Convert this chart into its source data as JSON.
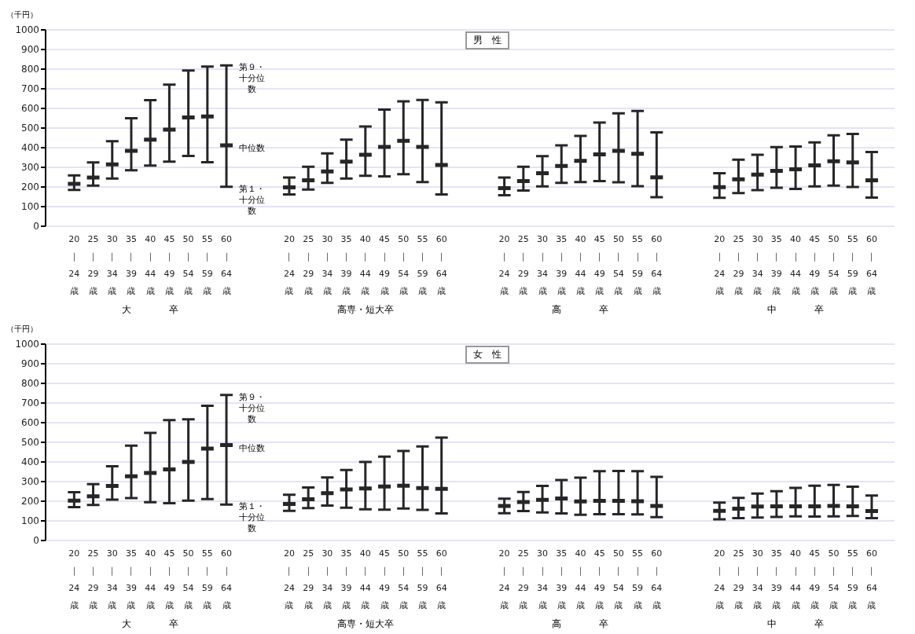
{
  "chart_data": [
    {
      "type": "scatter",
      "title": "男　性",
      "ylabel": "（千円）",
      "categories": [
        "20\n｜\n24\n歳",
        "25\n｜\n29\n歳",
        "30\n｜\n34\n歳",
        "35\n｜\n39\n歳",
        "40\n｜\n44\n歳",
        "45\n｜\n49\n歳",
        "50\n｜\n54\n歳",
        "55\n｜\n59\n歳",
        "60\n｜\n64\n歳",
        "20\n｜\n24\n歳",
        "25\n｜\n29\n歳",
        "30\n｜\n34\n歳",
        "35\n｜\n39\n歳",
        "40\n｜\n44\n歳",
        "45\n｜\n49\n歳",
        "50\n｜\n54\n歳",
        "55\n｜\n59\n歳",
        "60\n｜\n64\n歳",
        "20\n｜\n24\n歳",
        "25\n｜\n29\n歳",
        "30\n｜\n34\n歳",
        "35\n｜\n39\n歳",
        "40\n｜\n44\n歳",
        "45\n｜\n49\n歳",
        "50\n｜\n54\n歳",
        "55\n｜\n59\n歳",
        "60\n｜\n64\n歳",
        "20\n｜\n24\n歳",
        "25\n｜\n29\n歳",
        "30\n｜\n34\n歳",
        "35\n｜\n39\n歳",
        "40\n｜\n44\n歳",
        "45\n｜\n49\n歳",
        "50\n｜\n54\n歳",
        "55\n｜\n59\n歳",
        "60\n｜\n64\n歳"
      ],
      "series": [
        {
          "color": "#262626",
          "values": [
            216,
            248,
            315,
            384,
            441,
            492,
            554,
            559,
            412,
            198,
            234,
            279,
            329,
            364,
            404,
            435,
            404,
            312,
            194,
            230,
            270,
            307,
            333,
            366,
            384,
            369,
            249,
            199,
            239,
            263,
            282,
            290,
            310,
            331,
            325,
            234
          ],
          "errors": [
            [
              185,
              259
            ],
            [
              207,
              325
            ],
            [
              243,
              433
            ],
            [
              285,
              550
            ],
            [
              309,
              642
            ],
            [
              329,
              721
            ],
            [
              358,
              793
            ],
            [
              326,
              813
            ],
            [
              201,
              819
            ],
            [
              162,
              248
            ],
            [
              187,
              303
            ],
            [
              221,
              371
            ],
            [
              243,
              441
            ],
            [
              257,
              508
            ],
            [
              254,
              594
            ],
            [
              265,
              636
            ],
            [
              225,
              643
            ],
            [
              162,
              631
            ],
            [
              158,
              248
            ],
            [
              182,
              303
            ],
            [
              203,
              357
            ],
            [
              221,
              412
            ],
            [
              225,
              460
            ],
            [
              230,
              528
            ],
            [
              224,
              575
            ],
            [
              204,
              587
            ],
            [
              148,
              478
            ],
            [
              145,
              270
            ],
            [
              169,
              339
            ],
            [
              184,
              364
            ],
            [
              196,
              403
            ],
            [
              190,
              406
            ],
            [
              203,
              427
            ],
            [
              207,
              463
            ],
            [
              200,
              470
            ],
            [
              146,
              378
            ]
          ]
        }
      ],
      "ylim": [
        0,
        1000
      ],
      "yticks": [
        0,
        100,
        200,
        300,
        400,
        500,
        600,
        700,
        800,
        900,
        1000
      ],
      "grid": "y",
      "annotations": [
        "大　　　　卒",
        "高専・短大卒",
        "高　　　　卒",
        "中　　　　卒",
        "第９・十分位数",
        "中位数",
        "第１・十分位数"
      ]
    },
    {
      "type": "scatter",
      "title": "女　性",
      "ylabel": "（千円）",
      "categories": [
        "20\n｜\n24\n歳",
        "25\n｜\n29\n歳",
        "30\n｜\n34\n歳",
        "35\n｜\n39\n歳",
        "40\n｜\n44\n歳",
        "45\n｜\n49\n歳",
        "50\n｜\n54\n歳",
        "55\n｜\n59\n歳",
        "60\n｜\n64\n歳",
        "20\n｜\n24\n歳",
        "25\n｜\n29\n歳",
        "30\n｜\n34\n歳",
        "35\n｜\n39\n歳",
        "40\n｜\n44\n歳",
        "45\n｜\n49\n歳",
        "50\n｜\n54\n歳",
        "55\n｜\n59\n歳",
        "60\n｜\n64\n歳",
        "20\n｜\n24\n歳",
        "25\n｜\n29\n歳",
        "30\n｜\n34\n歳",
        "35\n｜\n39\n歳",
        "40\n｜\n44\n歳",
        "45\n｜\n49\n歳",
        "50\n｜\n54\n歳",
        "55\n｜\n59\n歳",
        "60\n｜\n64\n歳",
        "20\n｜\n24\n歳",
        "25\n｜\n29\n歳",
        "30\n｜\n34\n歳",
        "35\n｜\n39\n歳",
        "40\n｜\n44\n歳",
        "45\n｜\n49\n歳",
        "50\n｜\n54\n歳",
        "55\n｜\n59\n歳",
        "60\n｜\n64\n歳"
      ],
      "series": [
        {
          "color": "#262626",
          "values": [
            203,
            225,
            278,
            327,
            344,
            362,
            400,
            468,
            486,
            186,
            210,
            241,
            260,
            265,
            275,
            279,
            267,
            263,
            176,
            196,
            207,
            214,
            199,
            202,
            202,
            200,
            176,
            151,
            162,
            173,
            174,
            174,
            174,
            176,
            174,
            150
          ],
          "errors": [
            [
              170,
              246
            ],
            [
              181,
              287
            ],
            [
              208,
              378
            ],
            [
              216,
              483
            ],
            [
              195,
              548
            ],
            [
              190,
              613
            ],
            [
              203,
              617
            ],
            [
              211,
              686
            ],
            [
              183,
              741
            ],
            [
              151,
              233
            ],
            [
              165,
              270
            ],
            [
              178,
              321
            ],
            [
              167,
              359
            ],
            [
              159,
              400
            ],
            [
              157,
              427
            ],
            [
              163,
              456
            ],
            [
              156,
              479
            ],
            [
              138,
              524
            ],
            [
              139,
              213
            ],
            [
              150,
              247
            ],
            [
              143,
              278
            ],
            [
              138,
              308
            ],
            [
              131,
              320
            ],
            [
              134,
              353
            ],
            [
              134,
              354
            ],
            [
              133,
              353
            ],
            [
              119,
              324
            ],
            [
              108,
              193
            ],
            [
              114,
              217
            ],
            [
              117,
              239
            ],
            [
              120,
              251
            ],
            [
              123,
              268
            ],
            [
              122,
              279
            ],
            [
              123,
              283
            ],
            [
              125,
              274
            ],
            [
              114,
              229
            ]
          ]
        }
      ],
      "ylim": [
        0,
        1000
      ],
      "yticks": [
        0,
        100,
        200,
        300,
        400,
        500,
        600,
        700,
        800,
        900,
        1000
      ],
      "grid": "y",
      "annotations": [
        "大　　　　卒",
        "高専・短大卒",
        "高　　　　卒",
        "中　　　　卒",
        "第９・十分位数",
        "中位数",
        "第１・十分位数"
      ]
    }
  ]
}
